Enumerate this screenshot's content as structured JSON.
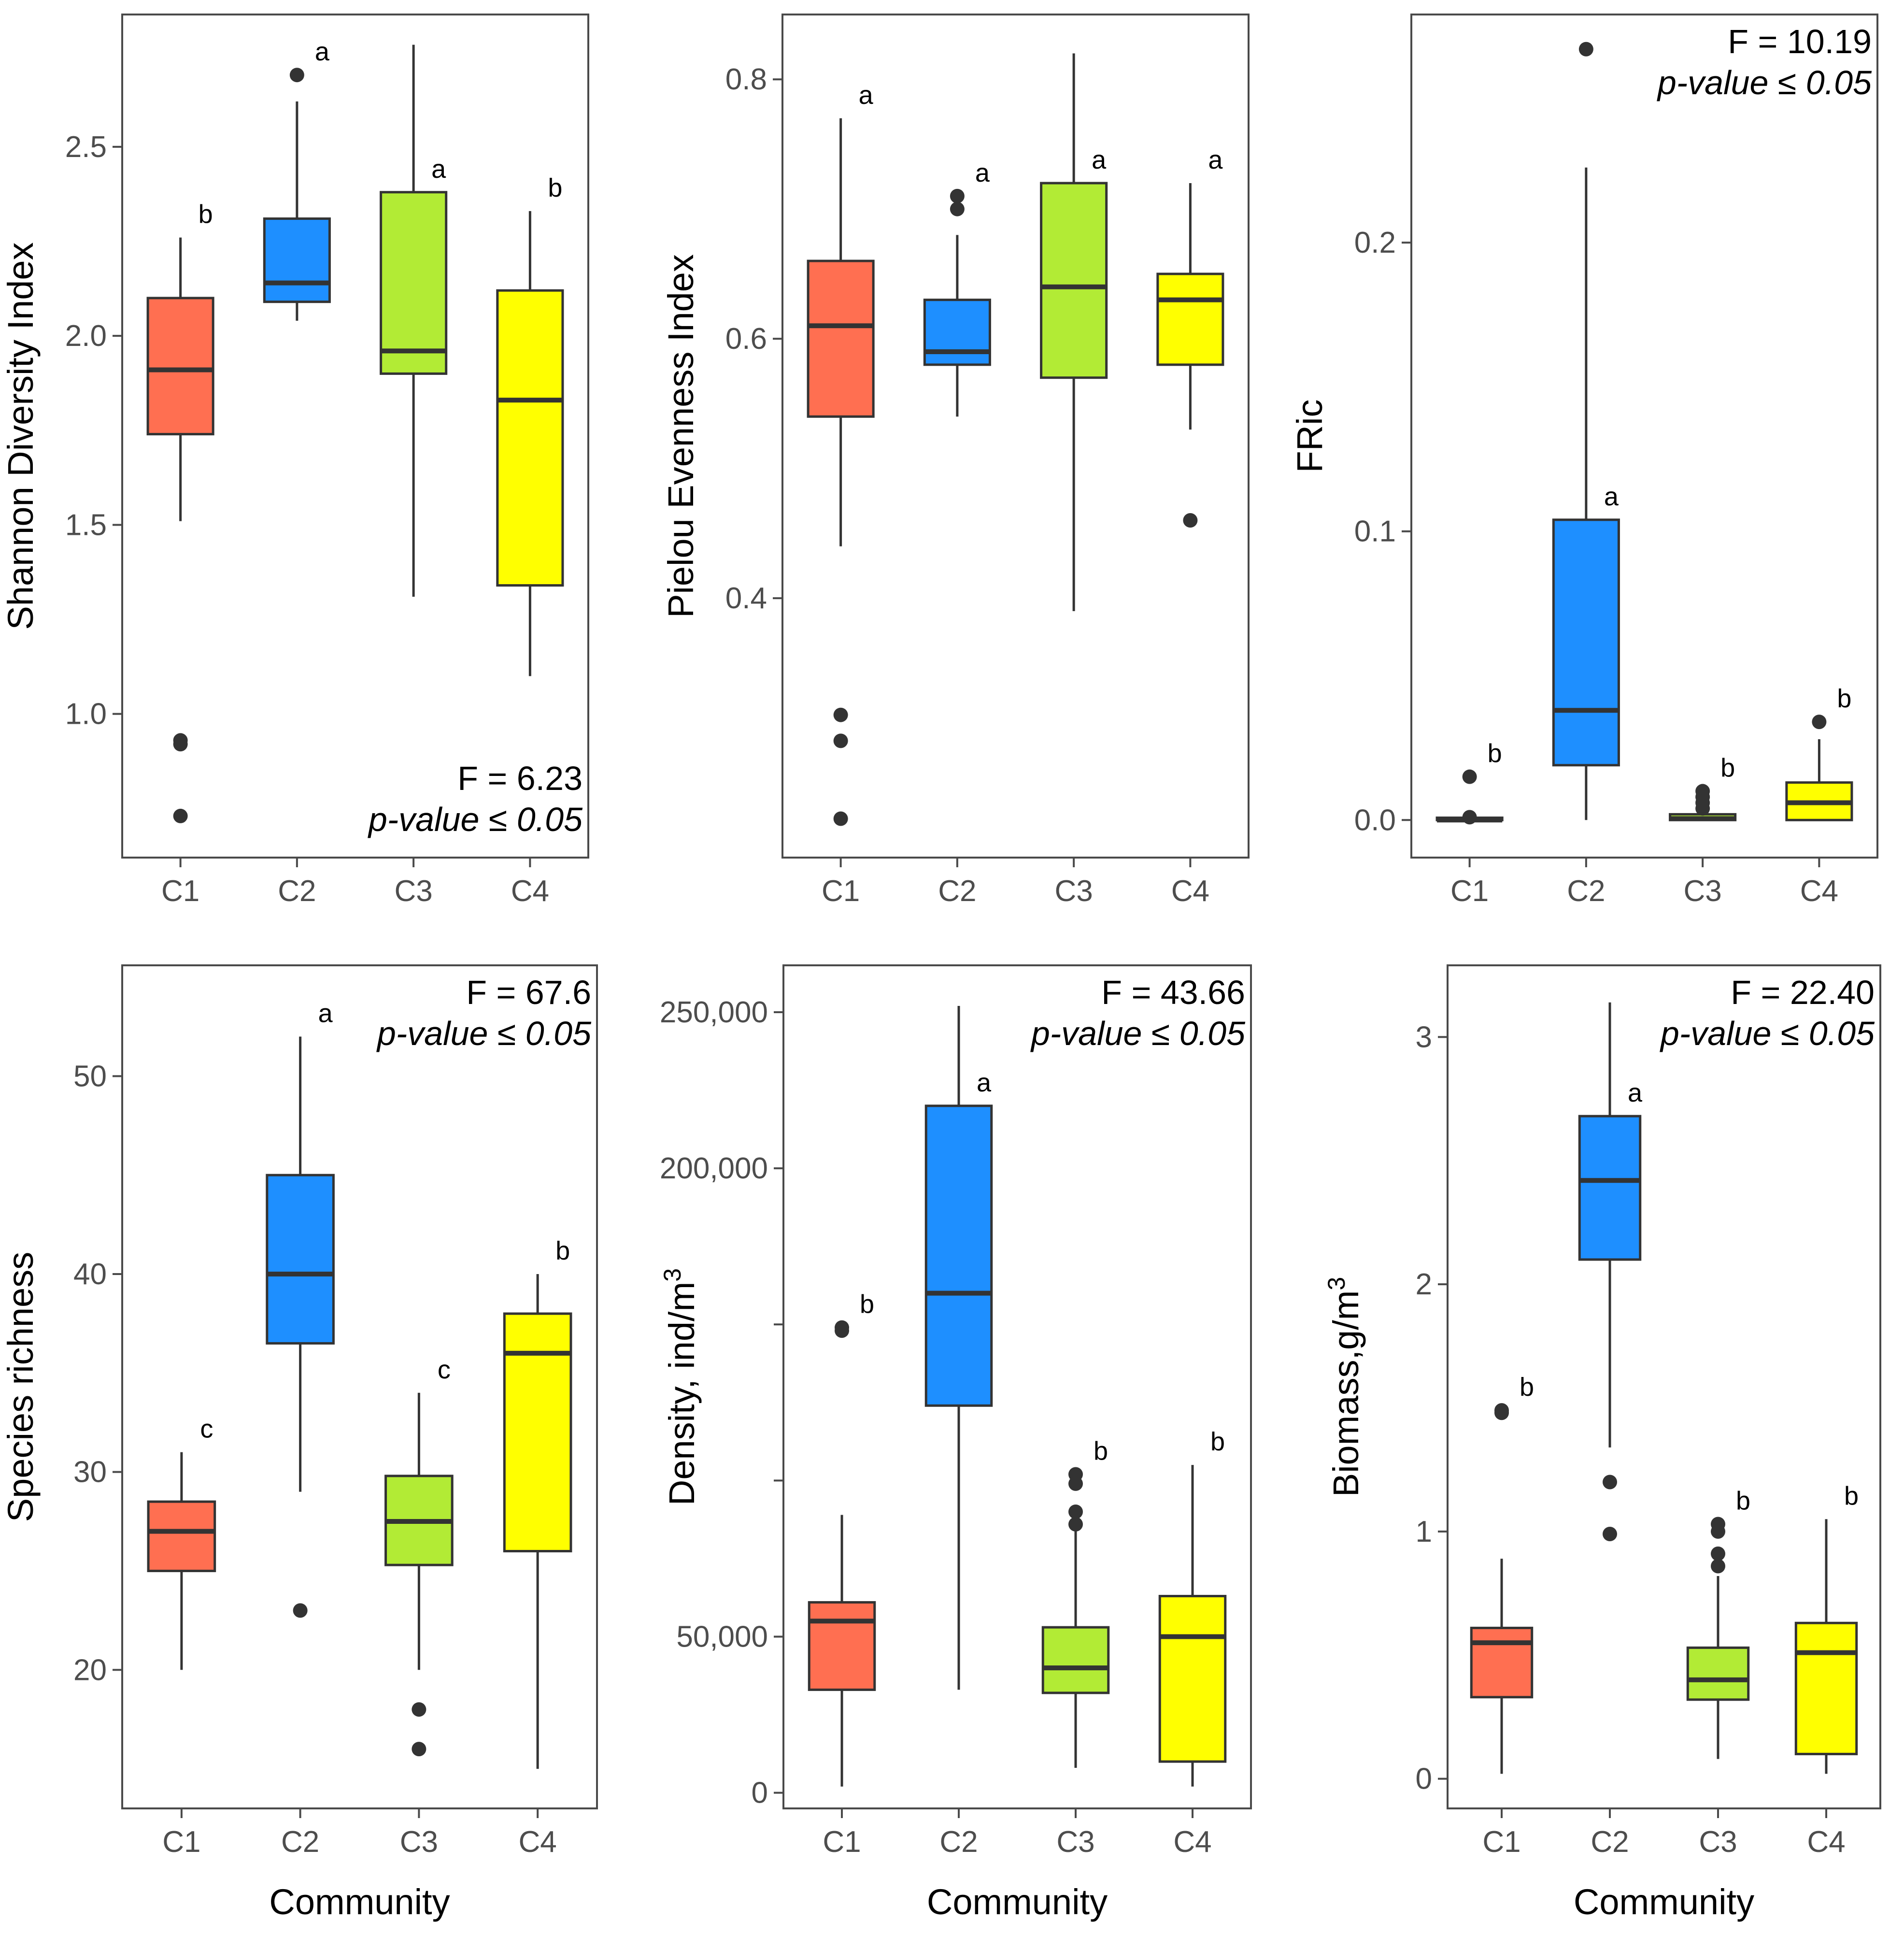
{
  "figure": {
    "x_axis_title": "Community",
    "category_axis_labels": [
      "C1",
      "C2",
      "C3",
      "C4"
    ]
  },
  "colors": {
    "C1": "#ff6f51",
    "C2": "#1e8fff",
    "C3": "#b2eb35",
    "C4": "#ffff00",
    "line": "#333333",
    "frame": "#4a4a4a"
  },
  "chart_data": [
    {
      "type": "boxplot",
      "panel": "top-left",
      "ylabel": "Shannon Diversity Index",
      "xlabel": "",
      "categories": [
        "C1",
        "C2",
        "C3",
        "C4"
      ],
      "ylim": [
        0.62,
        2.85
      ],
      "yticks": [
        1.0,
        1.5,
        2.0,
        2.5
      ],
      "ytick_labels": [
        "1.0",
        "1.5",
        "2.0",
        "2.5"
      ],
      "boxes": [
        {
          "category": "C1",
          "whisker_low": 1.51,
          "q1": 1.74,
          "median": 1.91,
          "q3": 2.1,
          "whisker_high": 2.26,
          "outliers": [
            0.93,
            0.92,
            0.73
          ],
          "letter": "b"
        },
        {
          "category": "C2",
          "whisker_low": 2.04,
          "q1": 2.09,
          "median": 2.14,
          "q3": 2.31,
          "whisker_high": 2.62,
          "outliers": [
            2.69
          ],
          "letter": "a"
        },
        {
          "category": "C3",
          "whisker_low": 1.31,
          "q1": 1.9,
          "median": 1.96,
          "q3": 2.38,
          "whisker_high": 2.77,
          "outliers": [],
          "letter": "a"
        },
        {
          "category": "C4",
          "whisker_low": 1.1,
          "q1": 1.34,
          "median": 1.83,
          "q3": 2.12,
          "whisker_high": 2.33,
          "outliers": [],
          "letter": "b"
        }
      ],
      "stat_position": "bottom-right",
      "stat_f": "F = 6.23",
      "stat_p": "p-value ≤ 0.05"
    },
    {
      "type": "boxplot",
      "panel": "top-middle",
      "ylabel": "Pielou Evenness Index",
      "xlabel": "",
      "categories": [
        "C1",
        "C2",
        "C3",
        "C4"
      ],
      "ylim": [
        0.2,
        0.85
      ],
      "yticks": [
        0.4,
        0.6,
        0.8
      ],
      "ytick_labels": [
        "0.4",
        "0.6",
        "0.8"
      ],
      "boxes": [
        {
          "category": "C1",
          "whisker_low": 0.44,
          "q1": 0.54,
          "median": 0.61,
          "q3": 0.66,
          "whisker_high": 0.77,
          "outliers": [
            0.31,
            0.29,
            0.23
          ],
          "letter": "a"
        },
        {
          "category": "C2",
          "whisker_low": 0.54,
          "q1": 0.58,
          "median": 0.59,
          "q3": 0.63,
          "whisker_high": 0.68,
          "outliers": [
            0.71,
            0.7
          ],
          "letter": "a"
        },
        {
          "category": "C3",
          "whisker_low": 0.39,
          "q1": 0.57,
          "median": 0.64,
          "q3": 0.72,
          "whisker_high": 0.82,
          "outliers": [],
          "letter": "a"
        },
        {
          "category": "C4",
          "whisker_low": 0.53,
          "q1": 0.58,
          "median": 0.63,
          "q3": 0.65,
          "whisker_high": 0.72,
          "outliers": [
            0.46
          ],
          "letter": "a"
        }
      ]
    },
    {
      "type": "boxplot",
      "panel": "top-right",
      "ylabel": "FRic",
      "xlabel": "",
      "categories": [
        "C1",
        "C2",
        "C3",
        "C4"
      ],
      "ylim": [
        -0.013,
        0.279
      ],
      "yticks": [
        0.0,
        0.1,
        0.2
      ],
      "ytick_labels": [
        "0.0",
        "0.1",
        "0.2"
      ],
      "boxes": [
        {
          "category": "C1",
          "whisker_low": 0.0,
          "q1": 0.0,
          "median": 0.0,
          "q3": 0.0008,
          "whisker_high": 0.0008,
          "outliers": [
            0.015,
            0.001
          ],
          "letter": "b"
        },
        {
          "category": "C2",
          "whisker_low": 0.0,
          "q1": 0.019,
          "median": 0.038,
          "q3": 0.104,
          "whisker_high": 0.226,
          "outliers": [
            0.267
          ],
          "letter": "a"
        },
        {
          "category": "C3",
          "whisker_low": 0.0,
          "q1": 0.0,
          "median": 0.0005,
          "q3": 0.002,
          "whisker_high": 0.002,
          "outliers": [
            0.01,
            0.008,
            0.006,
            0.004
          ],
          "letter": "b"
        },
        {
          "category": "C4",
          "whisker_low": 0.0,
          "q1": 0.0,
          "median": 0.006,
          "q3": 0.013,
          "whisker_high": 0.028,
          "outliers": [
            0.034
          ],
          "letter": "b"
        }
      ],
      "stat_position": "top-right",
      "stat_f": "F = 10.19",
      "stat_p": "p-value ≤ 0.05"
    },
    {
      "type": "boxplot",
      "panel": "bottom-left",
      "ylabel": "Species richness",
      "xlabel": "Community",
      "categories": [
        "C1",
        "C2",
        "C3",
        "C4"
      ],
      "ylim": [
        13.0,
        55.6
      ],
      "yticks": [
        20,
        30,
        40,
        50
      ],
      "ytick_labels": [
        "20",
        "30",
        "40",
        "50"
      ],
      "boxes": [
        {
          "category": "C1",
          "whisker_low": 20,
          "q1": 25.0,
          "median": 27.0,
          "q3": 28.5,
          "whisker_high": 31,
          "outliers": [],
          "letter": "c"
        },
        {
          "category": "C2",
          "whisker_low": 29,
          "q1": 36.5,
          "median": 40.0,
          "q3": 45.0,
          "whisker_high": 52,
          "outliers": [
            23
          ],
          "letter": "a"
        },
        {
          "category": "C3",
          "whisker_low": 20,
          "q1": 25.3,
          "median": 27.5,
          "q3": 29.8,
          "whisker_high": 34,
          "outliers": [
            18,
            16
          ],
          "letter": "c"
        },
        {
          "category": "C4",
          "whisker_low": 15,
          "q1": 26.0,
          "median": 36.0,
          "q3": 38.0,
          "whisker_high": 40,
          "outliers": [],
          "letter": "b"
        }
      ],
      "stat_position": "top-right",
      "stat_f": "F = 67.6",
      "stat_p": "p-value ≤ 0.05"
    },
    {
      "type": "boxplot",
      "panel": "bottom-middle",
      "ylabel": "Density, ind/m",
      "ylabel_superscript": "3",
      "xlabel": "Community",
      "categories": [
        "C1",
        "C2",
        "C3",
        "C4"
      ],
      "ylim": [
        -5000,
        265000
      ],
      "yticks": [
        0,
        50000,
        200000,
        250000
      ],
      "ytick_labels": [
        "0",
        "50,000",
        "200,000",
        "250,000"
      ],
      "minor_ticks": [
        100000,
        150000
      ],
      "boxes": [
        {
          "category": "C1",
          "whisker_low": 2000,
          "q1": 33000,
          "median": 55000,
          "q3": 61000,
          "whisker_high": 89000,
          "outliers": [
            149000,
            148000
          ],
          "letter": "b"
        },
        {
          "category": "C2",
          "whisker_low": 33000,
          "q1": 124000,
          "median": 160000,
          "q3": 220000,
          "whisker_high": 252000,
          "outliers": [],
          "letter": "a"
        },
        {
          "category": "C3",
          "whisker_low": 8000,
          "q1": 32000,
          "median": 40000,
          "q3": 53000,
          "whisker_high": 87000,
          "outliers": [
            102000,
            99000,
            90000,
            86000
          ],
          "letter": "b"
        },
        {
          "category": "C4",
          "whisker_low": 2000,
          "q1": 10000,
          "median": 50000,
          "q3": 63000,
          "whisker_high": 105000,
          "outliers": [],
          "letter": "b"
        }
      ],
      "stat_position": "top-right",
      "stat_f": "F = 43.66",
      "stat_p": "p-value ≤ 0.05"
    },
    {
      "type": "boxplot",
      "panel": "bottom-right",
      "ylabel": "Biomass,g/m",
      "ylabel_superscript": "3",
      "xlabel": "Community",
      "categories": [
        "C1",
        "C2",
        "C3",
        "C4"
      ],
      "ylim": [
        -0.12,
        3.29
      ],
      "yticks": [
        0,
        1,
        2,
        3
      ],
      "ytick_labels": [
        "0",
        "1",
        "2",
        "3"
      ],
      "boxes": [
        {
          "category": "C1",
          "whisker_low": 0.02,
          "q1": 0.33,
          "median": 0.55,
          "q3": 0.61,
          "whisker_high": 0.89,
          "outliers": [
            1.49,
            1.48
          ],
          "letter": "b"
        },
        {
          "category": "C2",
          "whisker_low": 1.34,
          "q1": 2.1,
          "median": 2.42,
          "q3": 2.68,
          "whisker_high": 3.14,
          "outliers": [
            1.2,
            0.99
          ],
          "letter": "a"
        },
        {
          "category": "C3",
          "whisker_low": 0.08,
          "q1": 0.32,
          "median": 0.4,
          "q3": 0.53,
          "whisker_high": 0.82,
          "outliers": [
            1.03,
            1.0,
            0.91,
            0.86
          ],
          "letter": "b"
        },
        {
          "category": "C4",
          "whisker_low": 0.02,
          "q1": 0.1,
          "median": 0.51,
          "q3": 0.63,
          "whisker_high": 1.05,
          "outliers": [],
          "letter": "b"
        }
      ],
      "stat_position": "top-right",
      "stat_f": "F = 22.40",
      "stat_p": "p-value ≤ 0.05"
    }
  ]
}
